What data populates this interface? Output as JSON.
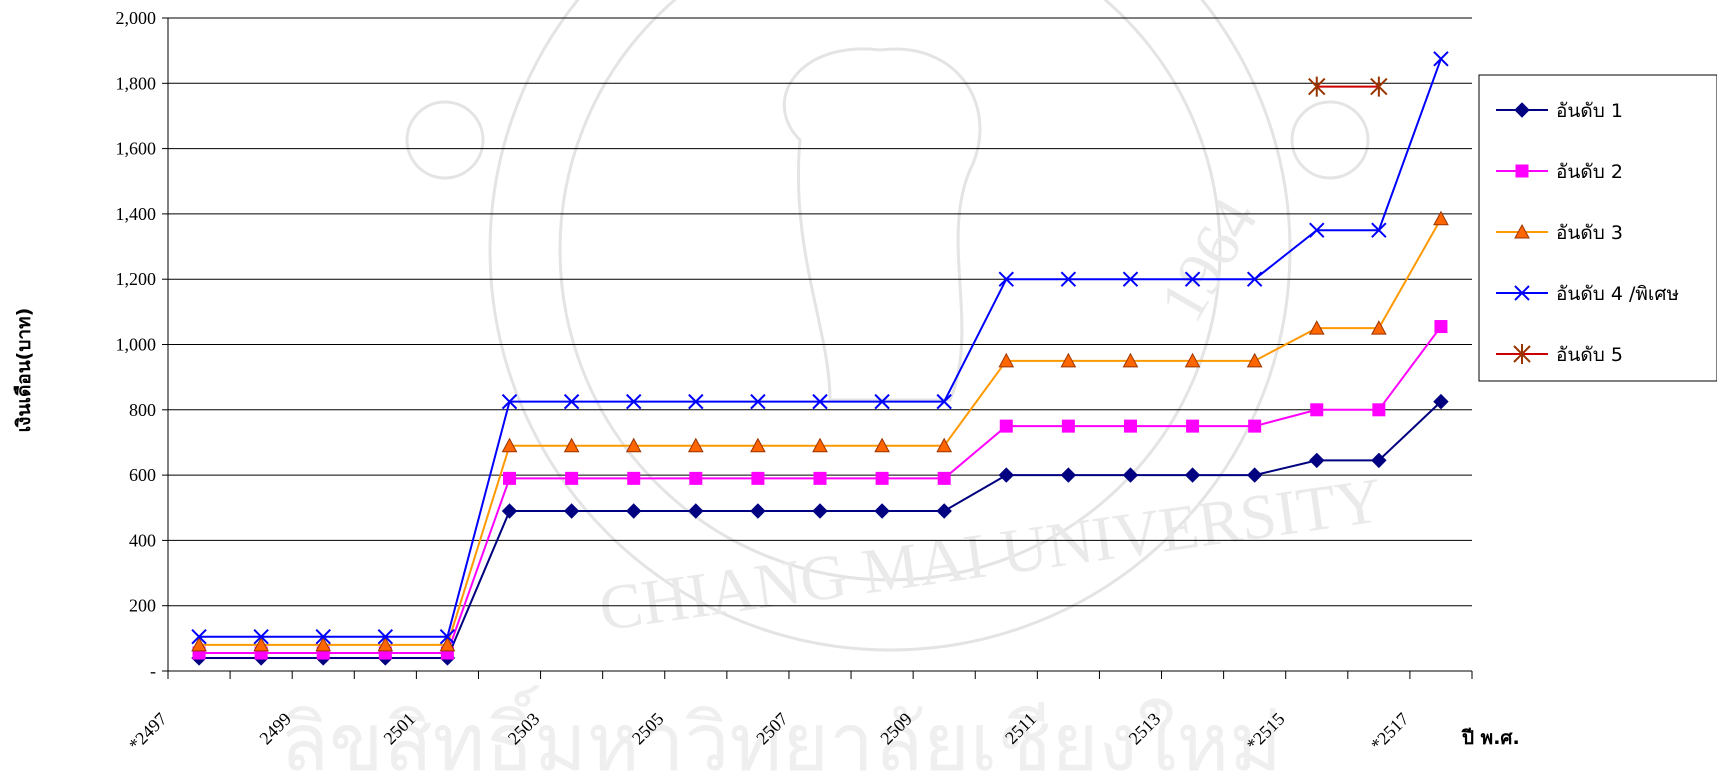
{
  "chart_data": {
    "type": "line",
    "title": "",
    "xlabel": "ปี พ.ศ.",
    "ylabel": "เงินเดือน(บาท)",
    "ylim": [
      0,
      2000
    ],
    "yticks": [
      "-",
      "200",
      "400",
      "600",
      "800",
      "1,000",
      "1,200",
      "1,400",
      "1,600",
      "1,800",
      "2,000"
    ],
    "x": [
      2497,
      2498,
      2499,
      2500,
      2501,
      2502,
      2503,
      2504,
      2505,
      2506,
      2507,
      2508,
      2509,
      2510,
      2511,
      2512,
      2513,
      2514,
      2515,
      2516,
      2517
    ],
    "x_tick_labels": [
      "*2497",
      "2499",
      "2501",
      "2503",
      "2505",
      "2507",
      "2509",
      "2511",
      "2513",
      "*2515",
      "*2517"
    ],
    "grid": "horizontal",
    "legend_position": "right",
    "series": [
      {
        "name": "อันดับ 1",
        "color": "#000080",
        "marker": "diamond",
        "values": [
          40,
          40,
          40,
          40,
          40,
          490,
          490,
          490,
          490,
          490,
          490,
          490,
          490,
          600,
          600,
          600,
          600,
          600,
          645,
          645,
          825
        ]
      },
      {
        "name": "อันดับ 2",
        "color": "#ff00ff",
        "marker": "square",
        "values": [
          55,
          55,
          55,
          55,
          55,
          590,
          590,
          590,
          590,
          590,
          590,
          590,
          590,
          750,
          750,
          750,
          750,
          750,
          800,
          800,
          1055
        ]
      },
      {
        "name": "อันดับ 3",
        "color": "#ff9900",
        "marker": "triangle",
        "values": [
          80,
          80,
          80,
          80,
          80,
          690,
          690,
          690,
          690,
          690,
          690,
          690,
          690,
          950,
          950,
          950,
          950,
          950,
          1050,
          1050,
          1385
        ]
      },
      {
        "name": "อันดับ 4 /พิเศษ",
        "color": "#0000ff",
        "marker": "x",
        "values": [
          105,
          105,
          105,
          105,
          105,
          825,
          825,
          825,
          825,
          825,
          825,
          825,
          825,
          1200,
          1200,
          1200,
          1200,
          1200,
          1350,
          1350,
          1875
        ]
      },
      {
        "name": "อันดับ 5",
        "color": "#cc0000",
        "marker": "star",
        "values": [
          null,
          null,
          null,
          null,
          null,
          null,
          null,
          null,
          null,
          null,
          null,
          null,
          null,
          null,
          null,
          null,
          null,
          null,
          1790,
          1790,
          null
        ]
      }
    ]
  },
  "watermark": {
    "text_top": "CHIANG MAI UNIVERSITY",
    "year": "1964",
    "text_bottom": "ลิขสิทธิ์มหาวิทยาลัยเชียงใหม่"
  }
}
